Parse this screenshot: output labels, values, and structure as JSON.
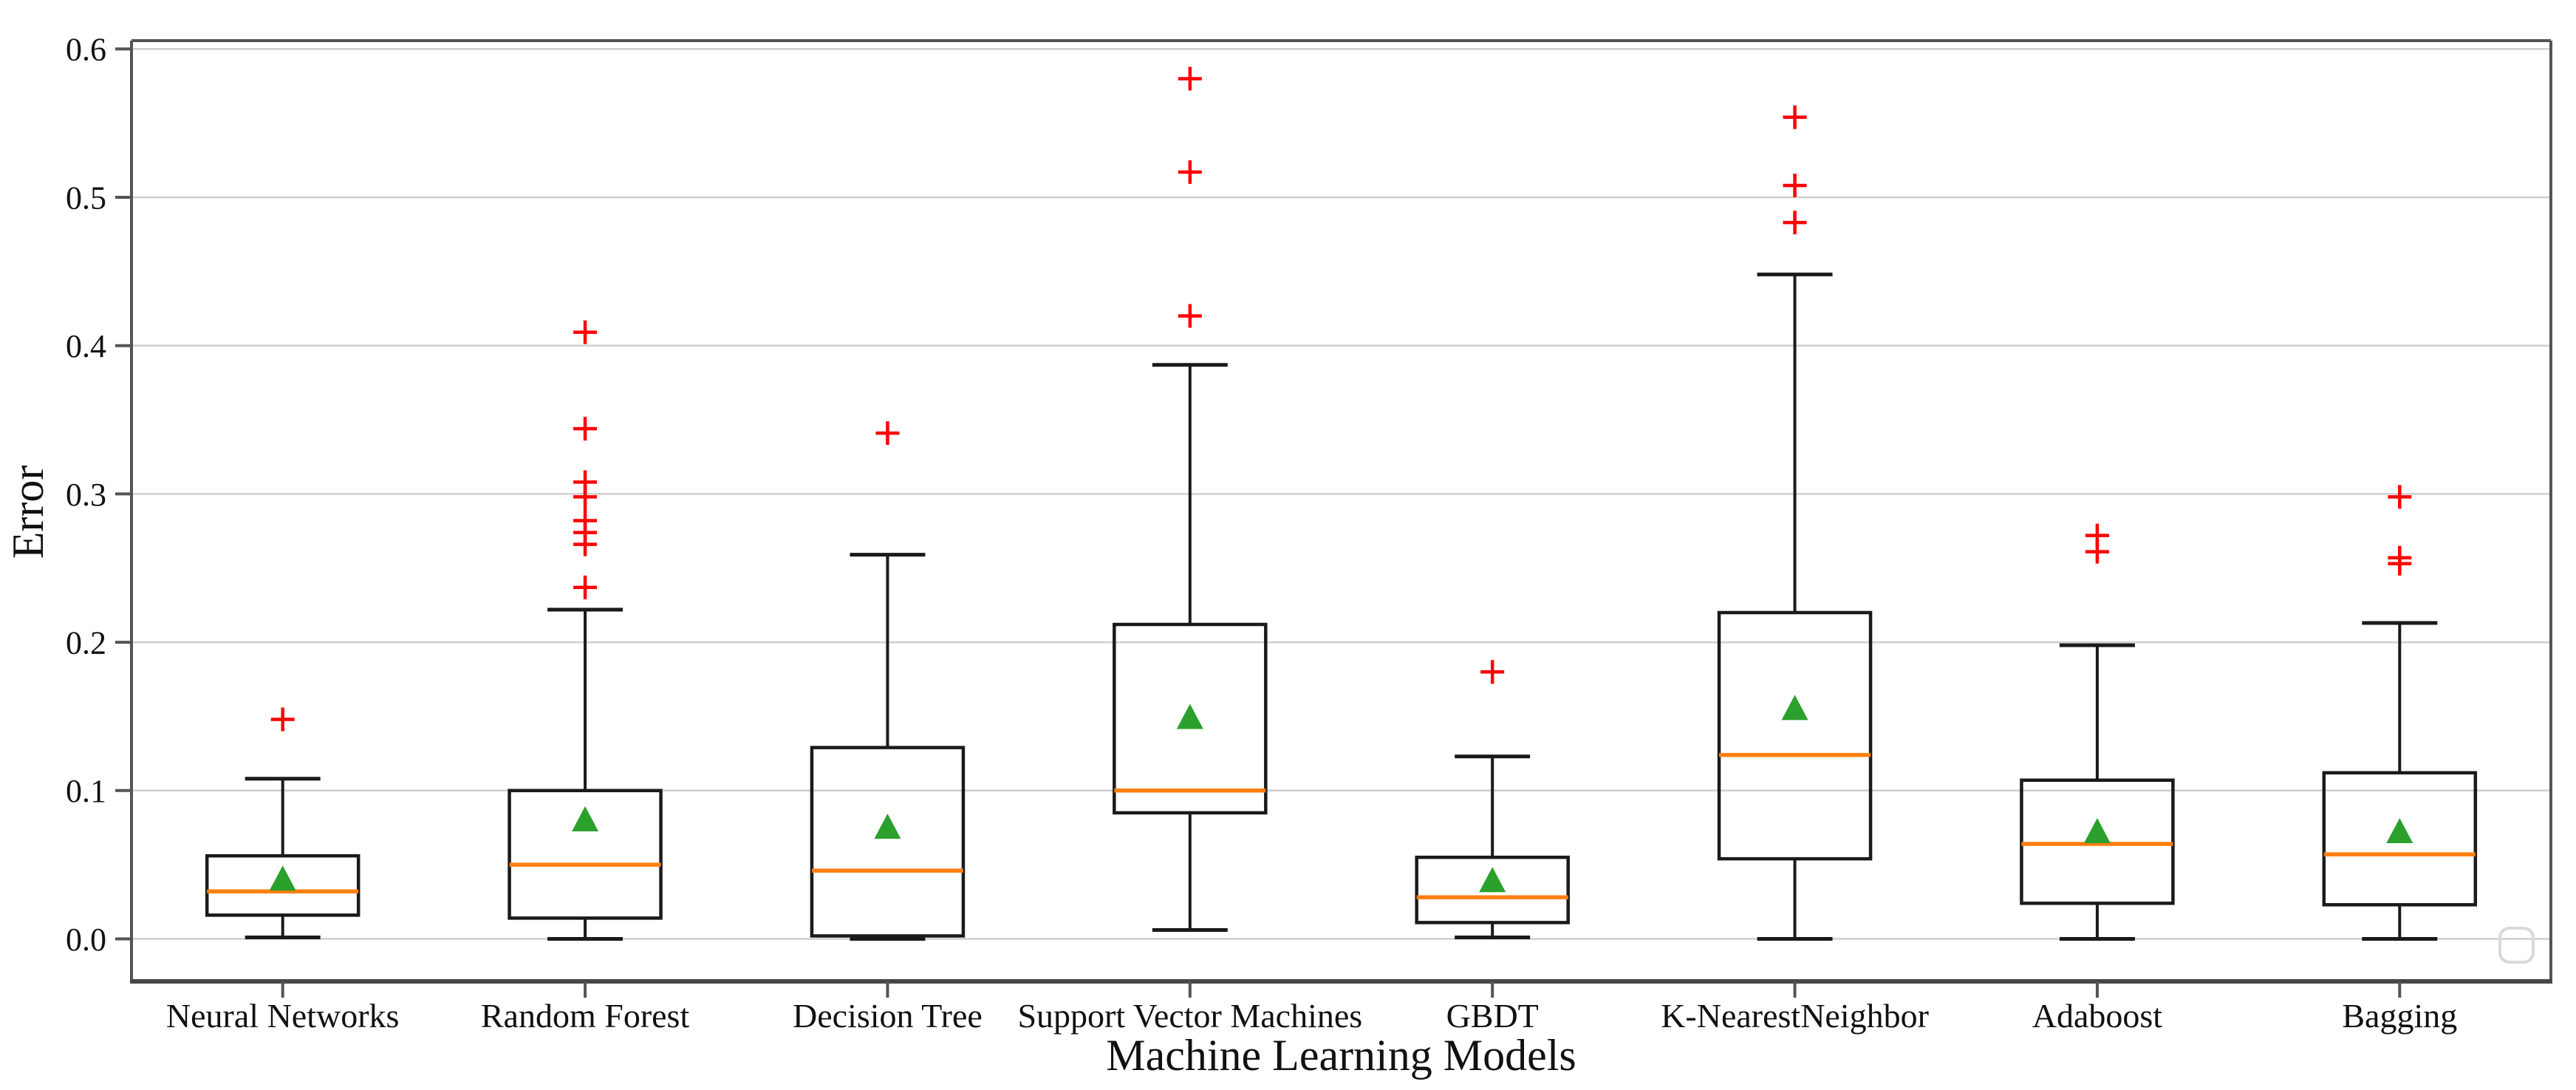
{
  "chart_data": {
    "type": "boxplot",
    "title": "",
    "xlabel": "Machine Learning Models",
    "ylabel": "Error",
    "ylim": [
      -0.029,
      0.606
    ],
    "yticks": [
      0.0,
      0.1,
      0.2,
      0.3,
      0.4,
      0.5,
      0.6
    ],
    "ytick_labels": [
      "0.0",
      "0.1",
      "0.2",
      "0.3",
      "0.4",
      "0.5",
      "0.6"
    ],
    "grid": "horizontal",
    "legend": "none",
    "categories": [
      "Neural Networks",
      "Random Forest",
      "Decision Tree",
      "Support Vector Machines",
      "GBDT",
      "K-NearestNeighbor",
      "Adaboost",
      "Bagging"
    ],
    "series": [
      {
        "name": "Neural Networks",
        "whislo": 0.001,
        "q1": 0.016,
        "med": 0.032,
        "mean": 0.039,
        "q3": 0.056,
        "whishi": 0.108,
        "outliers": [
          0.148
        ]
      },
      {
        "name": "Random Forest",
        "whislo": 0.0,
        "q1": 0.014,
        "med": 0.05,
        "mean": 0.079,
        "q3": 0.1,
        "whishi": 0.222,
        "outliers": [
          0.237,
          0.266,
          0.274,
          0.282,
          0.298,
          0.308,
          0.344,
          0.409
        ]
      },
      {
        "name": "Decision Tree",
        "whislo": 0.0,
        "q1": 0.002,
        "med": 0.046,
        "mean": 0.074,
        "q3": 0.129,
        "whishi": 0.259,
        "outliers": [
          0.341
        ]
      },
      {
        "name": "Support Vector Machines",
        "whislo": 0.006,
        "q1": 0.085,
        "med": 0.1,
        "mean": 0.148,
        "q3": 0.212,
        "whishi": 0.387,
        "outliers": [
          0.42,
          0.517,
          0.58
        ]
      },
      {
        "name": "GBDT",
        "whislo": 0.001,
        "q1": 0.011,
        "med": 0.028,
        "mean": 0.038,
        "q3": 0.055,
        "whishi": 0.123,
        "outliers": [
          0.18
        ]
      },
      {
        "name": "K-NearestNeighbor",
        "whislo": 0.0,
        "q1": 0.054,
        "med": 0.124,
        "mean": 0.154,
        "q3": 0.22,
        "whishi": 0.448,
        "outliers": [
          0.483,
          0.508,
          0.554
        ]
      },
      {
        "name": "Adaboost",
        "whislo": 0.0,
        "q1": 0.024,
        "med": 0.064,
        "mean": 0.071,
        "q3": 0.107,
        "whishi": 0.198,
        "outliers": [
          0.261,
          0.272
        ]
      },
      {
        "name": "Bagging",
        "whislo": 0.0,
        "q1": 0.023,
        "med": 0.057,
        "mean": 0.071,
        "q3": 0.112,
        "whishi": 0.213,
        "outliers": [
          0.253,
          0.257,
          0.298
        ]
      }
    ],
    "colors": {
      "box_line": "#1a1a1a",
      "median": "#ff7f0e",
      "mean_marker": "#2ca02c",
      "outlier_marker": "#ff0000",
      "gridline": "#cfcfcf",
      "spine": "#545454",
      "bottom_axis": "#474747",
      "tick_text": "#111111",
      "watermark_outline": "#d9d9d9",
      "background": "#ffffff"
    },
    "markers": {
      "mean": "triangle-up",
      "outlier": "plus"
    }
  }
}
